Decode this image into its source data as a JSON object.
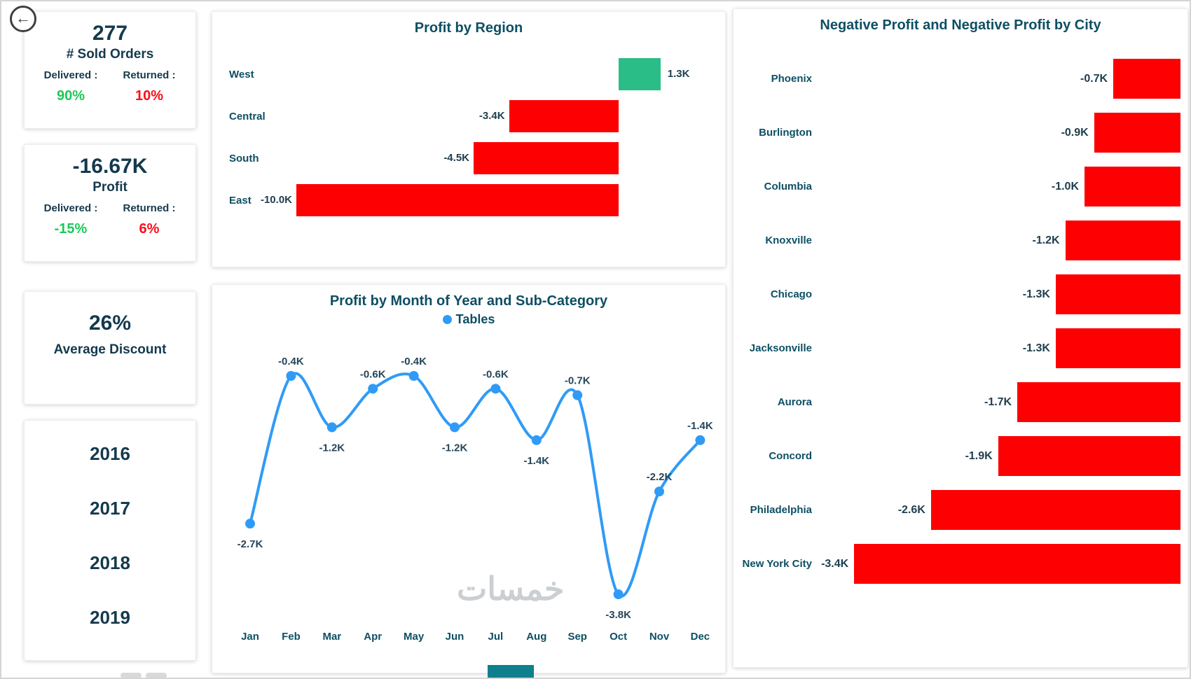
{
  "colors": {
    "teal_heading": "#0d4f63",
    "dark_value": "#14394d",
    "green": "#1dc959",
    "red": "#fb0d1b",
    "bar_red": "#fd0002",
    "bar_green": "#2abd87",
    "line_blue": "#2f9bf7"
  },
  "back_button": {
    "icon": "back-arrow",
    "glyph": "←"
  },
  "kpi": {
    "sold_orders": {
      "value": "277",
      "label": "# Sold Orders",
      "delivered_label": "Delivered :",
      "returned_label": "Returned :",
      "delivered_value": "90%",
      "returned_value": "10%"
    },
    "profit": {
      "value": "-16.67K",
      "label": "Profit",
      "delivered_label": "Delivered :",
      "returned_label": "Returned :",
      "delivered_value": "-15%",
      "returned_value": "6%"
    },
    "discount": {
      "value": "26%",
      "label": "Average Discount"
    },
    "years": [
      "2016",
      "2017",
      "2018",
      "2019"
    ]
  },
  "chart_data": [
    {
      "type": "bar",
      "orientation": "horizontal",
      "title": "Profit by Region",
      "categories": [
        "West",
        "Central",
        "South",
        "East"
      ],
      "values": [
        1.3,
        -3.4,
        -4.5,
        -10.0
      ],
      "value_labels": [
        "1.3K",
        "-3.4K",
        "-4.5K",
        "-10.0K"
      ],
      "unit": "K",
      "xlim": [
        -10.5,
        1.5
      ],
      "grid": false,
      "positive_color": "#2abd87",
      "negative_color": "#fd0002"
    },
    {
      "type": "line",
      "title": "Profit by Month of Year and Sub-Category",
      "legend": [
        "Tables"
      ],
      "legend_position": "top",
      "categories": [
        "Jan",
        "Feb",
        "Mar",
        "Apr",
        "May",
        "Jun",
        "Jul",
        "Aug",
        "Sep",
        "Oct",
        "Nov",
        "Dec"
      ],
      "series": [
        {
          "name": "Tables",
          "values": [
            -2.7,
            -0.4,
            -1.2,
            -0.6,
            -0.4,
            -1.2,
            -0.6,
            -1.4,
            -0.7,
            -3.8,
            -2.2,
            -1.4
          ]
        }
      ],
      "value_labels": [
        "-2.7K",
        "-0.4K",
        "-1.2K",
        "-0.6K",
        "-0.4K",
        "-1.2K",
        "-0.6K",
        "-1.4K",
        "-0.7K",
        "-3.8K",
        "-2.2K",
        "-1.4K"
      ],
      "label_positions": [
        "below",
        "above",
        "below",
        "above",
        "above",
        "below",
        "above",
        "below",
        "above",
        "below",
        "above",
        "above"
      ],
      "unit": "K",
      "ylim": [
        -4.2,
        0
      ],
      "grid": false,
      "line_color": "#2f9bf7"
    },
    {
      "type": "bar",
      "orientation": "horizontal",
      "title": "Negative Profit and Negative Profit by City",
      "categories": [
        "Phoenix",
        "Burlington",
        "Columbia",
        "Knoxville",
        "Chicago",
        "Jacksonville",
        "Aurora",
        "Concord",
        "Philadelphia",
        "New York City"
      ],
      "values": [
        -0.7,
        -0.9,
        -1.0,
        -1.2,
        -1.3,
        -1.3,
        -1.7,
        -1.9,
        -2.6,
        -3.4
      ],
      "value_labels": [
        "-0.7K",
        "-0.9K",
        "-1.0K",
        "-1.2K",
        "-1.3K",
        "-1.3K",
        "-1.7K",
        "-1.9K",
        "-2.6K",
        "-3.4K"
      ],
      "unit": "K",
      "xlim": [
        -3.5,
        0
      ],
      "grid": false,
      "bar_color": "#fd0002"
    }
  ],
  "watermark": {
    "text": "خمسات"
  }
}
